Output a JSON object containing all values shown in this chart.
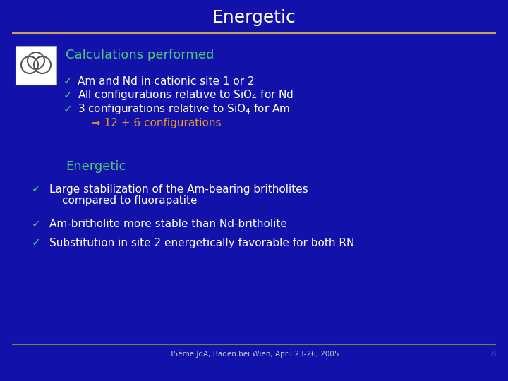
{
  "title": "Energetic",
  "background_color": "#1212aa",
  "title_color": "#ffffff",
  "title_separator_color": "#c8a060",
  "footer_separator_color": "#5a8a5a",
  "footer_text": "35ème JdA, Baden bei Wien, April 23-26, 2005",
  "footer_page": "8",
  "footer_color": "#cccccc",
  "section1_title": "Calculations performed",
  "section1_color": "#50c878",
  "bullet_color": "#ffffff",
  "check_color": "#50c878",
  "bullet1": "Am and Nd in cationic site 1 or 2",
  "bullet2_start": "All configurations relative to SiO",
  "bullet2_sub": "4",
  "bullet2_end": " for Nd",
  "bullet3_start": "3 configurations relative to SiO",
  "bullet3_sub": "4",
  "bullet3_end": " for Am",
  "sub_bullet": "⇒ 12 + 6 configurations",
  "sub_bullet_color": "#e8982a",
  "section2_title": "Energetic",
  "section2_color": "#50c878",
  "result1a": "Large stabilization of the Am-bearing britholites",
  "result1b": "compared to fluorapatite",
  "result2": "Am-britholite more stable than Nd-britholite",
  "result3": "Substitution in site 2 energetically favorable for both RN"
}
